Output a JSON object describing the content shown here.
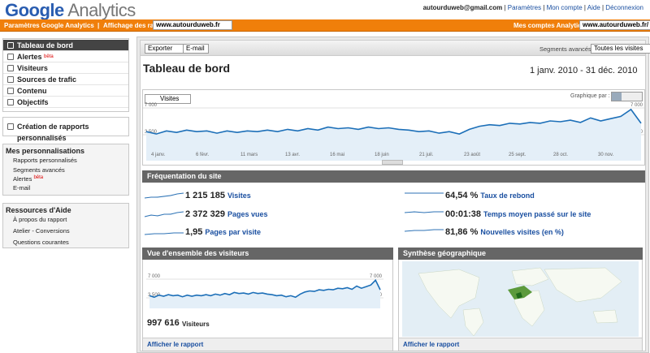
{
  "header": {
    "brand": "Google",
    "product": "Analytics",
    "email": "autourduweb@gmail.com",
    "links": [
      "Paramètres",
      "Mon compte",
      "Aide",
      "Déconnexion"
    ]
  },
  "toolbar": {
    "settings": "Paramètres Google Analytics",
    "report_view_label": "Affichage des rapports :",
    "report_view_value": "www.autourduweb.fr",
    "accounts_label": "Mes comptes Analytics :",
    "accounts_value": "www.autourduweb.fr/"
  },
  "sidebar": {
    "nav": [
      "Tableau de bord",
      "Alertes",
      "Visiteurs",
      "Sources de trafic",
      "Contenu",
      "Objectifs"
    ],
    "beta": "bêta",
    "custom_reports": "Création de rapports personnalisés",
    "my_custom": {
      "title": "Mes personnalisations",
      "items": [
        "Rapports personnalisés",
        "Segments avancés",
        "Alertes",
        "E-mail"
      ]
    },
    "help": {
      "title": "Ressources d'Aide",
      "items": [
        "À propos du rapport",
        "Atelier - Conversions",
        "Questions courantes"
      ]
    }
  },
  "dashboard": {
    "export": "Exporter",
    "email": "E-mail",
    "segments_label": "Segments avancés :",
    "segments_value": "Toutes les visites",
    "title": "Tableau de bord",
    "date_range": "1 janv. 2010 - 31 déc. 2010",
    "metric": "Visites",
    "graph_by": "Graphique par :"
  },
  "chart": {
    "type": "line",
    "values": [
      3900,
      3600,
      4000,
      3800,
      4100,
      3900,
      4000,
      3700,
      4000,
      3800,
      4000,
      3900,
      4100,
      3900,
      4200,
      4000,
      4300,
      4100,
      4500,
      4300,
      4400,
      4200,
      4500,
      4300,
      4400,
      4200,
      4100,
      3900,
      4000,
      3700,
      3900,
      3600,
      4200,
      4600,
      4800,
      4700,
      5000,
      4900,
      5100,
      5000,
      5300,
      5200,
      5400,
      5100,
      5700,
      5300,
      5600,
      5900,
      6800,
      5000
    ],
    "color": "#1c6fb8",
    "ylim": [
      0,
      7000
    ],
    "yticks": [
      {
        "value": 3500,
        "label": "3 500"
      },
      {
        "value": 7000,
        "label": "7 000"
      }
    ],
    "x_labels": [
      "4 janv.",
      "6 févr.",
      "11 mars",
      "13 avr.",
      "16 mai",
      "18 juin",
      "21 juil.",
      "23 août",
      "25 sept.",
      "28 oct.",
      "30 nov."
    ]
  },
  "site_usage": {
    "title": "Fréquentation du site",
    "stats": [
      {
        "value": "1 215 185",
        "label": "Visites"
      },
      {
        "value": "2 372 329",
        "label": "Pages vues"
      },
      {
        "value": "1,95",
        "label": "Pages par visite"
      },
      {
        "value": "64,54 %",
        "label": "Taux de rebond"
      },
      {
        "value": "00:01:38",
        "label": "Temps moyen passé sur le site"
      },
      {
        "value": "81,86 %",
        "label": "Nouvelles visites (en %)"
      }
    ]
  },
  "visitors_overview": {
    "title": "Vue d'ensemble des visiteurs",
    "value": "997 616",
    "label": "Visiteurs",
    "link": "Afficher le rapport"
  },
  "map_overlay": {
    "title": "Synthèse géographique",
    "link": "Afficher le rapport"
  }
}
